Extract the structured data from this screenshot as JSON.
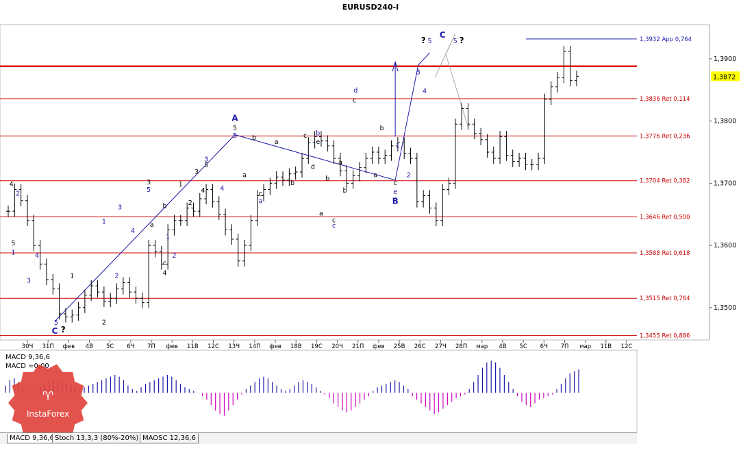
{
  "title": "EURUSD240-I",
  "chart_data": {
    "type": "candlestick",
    "symbol": "EURUSD240-I",
    "ylim": [
      1.3448,
      1.3955
    ],
    "y_ticks": [
      1.39,
      1.38,
      1.37,
      1.36,
      1.35
    ],
    "y_tick_labels": [
      "1,3900",
      "1,3800",
      "1,3700",
      "1,3600",
      "1,3500"
    ],
    "current_price": 1.3872,
    "current_price_label": "1,3872",
    "x_labels": [
      "30Ч",
      "31П",
      "фев",
      "4В",
      "5С",
      "6Ч",
      "7П",
      "фев",
      "11В",
      "12С",
      "13Ч",
      "14П",
      "фев",
      "18В",
      "19С",
      "20Ч",
      "21П",
      "фев",
      "25В",
      "26С",
      "27Ч",
      "28П",
      "мар",
      "4В",
      "5С",
      "6Ч",
      "7П",
      "мар",
      "11В",
      "12С"
    ],
    "fib_levels": [
      {
        "price": 1.3932,
        "label": "1,3932 App 0,764"
      },
      {
        "price": 1.3836,
        "label": "1,3836 Ret 0,114"
      },
      {
        "price": 1.3776,
        "label": "1,3776 Ret 0,236"
      },
      {
        "price": 1.3704,
        "label": "1,3704 Ret 0,382"
      },
      {
        "price": 1.3646,
        "label": "1,3646 Ret 0,500"
      },
      {
        "price": 1.3588,
        "label": "1,3588 Ret 0,618"
      },
      {
        "price": 1.3515,
        "label": "1,3515 Ret 0,764"
      },
      {
        "price": 1.3455,
        "label": "1,3455 Ret 0,886"
      }
    ],
    "resistance_level": 1.3888,
    "ohlc_closes": [
      1.3655,
      1.369,
      1.3672,
      1.364,
      1.36,
      1.357,
      1.3545,
      1.353,
      1.349,
      1.3485,
      1.3488,
      1.35,
      1.352,
      1.3535,
      1.3525,
      1.351,
      1.3515,
      1.353,
      1.354,
      1.3525,
      1.3515,
      1.3508,
      1.36,
      1.359,
      1.357,
      1.3625,
      1.364,
      1.364,
      1.366,
      1.3655,
      1.3675,
      1.369,
      1.367,
      1.365,
      1.3625,
      1.361,
      1.3575,
      1.36,
      1.364,
      1.368,
      1.369,
      1.37,
      1.371,
      1.3705,
      1.3715,
      1.3718,
      1.374,
      1.3765,
      1.3775,
      1.3768,
      1.376,
      1.374,
      1.372,
      1.37,
      1.3712,
      1.3725,
      1.374,
      1.375,
      1.374,
      1.3745,
      1.376,
      1.3765,
      1.3748,
      1.374,
      1.367,
      1.368,
      1.366,
      1.364,
      1.369,
      1.37,
      1.3795,
      1.382,
      1.3795,
      1.378,
      1.377,
      1.375,
      1.374,
      1.3775,
      1.3745,
      1.3735,
      1.374,
      1.373,
      1.373,
      1.374,
      1.3835,
      1.3855,
      1.387,
      1.3912,
      1.3865,
      1.3872
    ],
    "wave_labels": [
      {
        "t": "4",
        "i": 0.5,
        "p": 1.3695,
        "c": "#000000"
      },
      {
        "t": "2",
        "i": 1.5,
        "p": 1.368,
        "c": "#1a1aa8"
      },
      {
        "t": "5",
        "i": 0.8,
        "p": 1.36,
        "c": "#000000"
      },
      {
        "t": "1",
        "i": 0.8,
        "p": 1.3585,
        "c": "#1a1aa8"
      },
      {
        "t": "4",
        "i": 4.5,
        "p": 1.358,
        "c": "#1a1aa8"
      },
      {
        "t": "3",
        "i": 3.2,
        "p": 1.354,
        "c": "#1a1aa8"
      },
      {
        "t": "5",
        "i": 7.5,
        "p": 1.3472,
        "c": "#1a1aa8"
      },
      {
        "t": "C",
        "i": 7.3,
        "p": 1.3458,
        "c": "#1a1aa8",
        "big": true
      },
      {
        "t": "?",
        "i": 8.6,
        "p": 1.346,
        "c": "#000000",
        "big": true
      },
      {
        "t": "1",
        "i": 10.0,
        "p": 1.3548,
        "c": "#000000"
      },
      {
        "t": "2",
        "i": 15.0,
        "p": 1.3473,
        "c": "#000000"
      },
      {
        "t": "1",
        "i": 15.0,
        "p": 1.3635,
        "c": "#1a1aa8"
      },
      {
        "t": "2",
        "i": 17.0,
        "p": 1.3548,
        "c": "#1a1aa8"
      },
      {
        "t": "3",
        "i": 17.5,
        "p": 1.3658,
        "c": "#1a1aa8"
      },
      {
        "t": "4",
        "i": 19.5,
        "p": 1.362,
        "c": "#1a1aa8"
      },
      {
        "t": "3",
        "i": 22.0,
        "p": 1.3698,
        "c": "#000000"
      },
      {
        "t": "5",
        "i": 22.0,
        "p": 1.3686,
        "c": "#1a1aa8"
      },
      {
        "t": "a",
        "i": 22.5,
        "p": 1.363,
        "c": "#000000"
      },
      {
        "t": "b",
        "i": 24.5,
        "p": 1.366,
        "c": "#000000"
      },
      {
        "t": "1",
        "i": 25.0,
        "p": 1.361,
        "c": "#1a1aa8"
      },
      {
        "t": "2",
        "i": 26.0,
        "p": 1.358,
        "c": "#1a1aa8"
      },
      {
        "t": "c",
        "i": 24.5,
        "p": 1.3568,
        "c": "#000000"
      },
      {
        "t": "4",
        "i": 24.5,
        "p": 1.3552,
        "c": "#000000"
      },
      {
        "t": "1",
        "i": 27.0,
        "p": 1.3695,
        "c": "#000000"
      },
      {
        "t": "2",
        "i": 28.5,
        "p": 1.3665,
        "c": "#000000"
      },
      {
        "t": "3",
        "i": 29.5,
        "p": 1.3715,
        "c": "#000000"
      },
      {
        "t": "4",
        "i": 30.5,
        "p": 1.3685,
        "c": "#000000"
      },
      {
        "t": "3",
        "i": 31.0,
        "p": 1.3735,
        "c": "#1a1aa8"
      },
      {
        "t": "5",
        "i": 31.0,
        "p": 1.3726,
        "c": "#000000"
      },
      {
        "t": "4",
        "i": 33.5,
        "p": 1.3688,
        "c": "#1a1aa8"
      },
      {
        "t": "A",
        "i": 35.5,
        "p": 1.38,
        "c": "#1a1aa8",
        "big": true
      },
      {
        "t": "5",
        "i": 35.5,
        "p": 1.3786,
        "c": "#000000"
      },
      {
        "t": "5",
        "i": 35.5,
        "p": 1.3773,
        "c": "#1a1aa8"
      },
      {
        "t": "b",
        "i": 38.5,
        "p": 1.377,
        "c": "#000000"
      },
      {
        "t": "a",
        "i": 37.0,
        "p": 1.371,
        "c": "#000000"
      },
      {
        "t": "c",
        "i": 39.5,
        "p": 1.368,
        "c": "#000000"
      },
      {
        "t": "a",
        "i": 39.5,
        "p": 1.3668,
        "c": "#1a1aa8"
      },
      {
        "t": "a",
        "i": 42.0,
        "p": 1.3763,
        "c": "#000000"
      },
      {
        "t": "b",
        "i": 44.5,
        "p": 1.3697,
        "c": "#000000"
      },
      {
        "t": "c",
        "i": 46.5,
        "p": 1.3773,
        "c": "#000000"
      },
      {
        "t": "b",
        "i": 48.5,
        "p": 1.3777,
        "c": "#1a1aa8"
      },
      {
        "t": "e",
        "i": 48.5,
        "p": 1.3763,
        "c": "#000000"
      },
      {
        "t": "d",
        "i": 47.7,
        "p": 1.3723,
        "c": "#000000"
      },
      {
        "t": "b",
        "i": 50.0,
        "p": 1.3704,
        "c": "#000000"
      },
      {
        "t": "a",
        "i": 49.0,
        "p": 1.3648,
        "c": "#000000"
      },
      {
        "t": "c",
        "i": 51.0,
        "p": 1.3637,
        "c": "#000000"
      },
      {
        "t": "c",
        "i": 51.0,
        "p": 1.3628,
        "c": "#1a1aa8"
      },
      {
        "t": "a",
        "i": 52.0,
        "p": 1.373,
        "c": "#000000"
      },
      {
        "t": "b",
        "i": 52.7,
        "p": 1.3685,
        "c": "#000000"
      },
      {
        "t": "d",
        "i": 54.4,
        "p": 1.3846,
        "c": "#1a1aa8"
      },
      {
        "t": "c",
        "i": 54.2,
        "p": 1.383,
        "c": "#000000"
      },
      {
        "t": "b",
        "i": 58.5,
        "p": 1.3785,
        "c": "#000000"
      },
      {
        "t": "a",
        "i": 57.5,
        "p": 1.371,
        "c": "#000000"
      },
      {
        "t": "1",
        "i": 61.0,
        "p": 1.3757,
        "c": "#1a1aa8"
      },
      {
        "t": "2",
        "i": 62.7,
        "p": 1.371,
        "c": "#1a1aa8"
      },
      {
        "t": "c",
        "i": 60.6,
        "p": 1.3697,
        "c": "#000000"
      },
      {
        "t": "e",
        "i": 60.6,
        "p": 1.3683,
        "c": "#1a1aa8"
      },
      {
        "t": "B",
        "i": 60.6,
        "p": 1.3667,
        "c": "#1a1aa8",
        "big": true
      },
      {
        "t": "3",
        "i": 64.2,
        "p": 1.3875,
        "c": "#1a1aa8"
      },
      {
        "t": "4",
        "i": 65.2,
        "p": 1.3845,
        "c": "#1a1aa8"
      },
      {
        "t": "?",
        "i": 65.0,
        "p": 1.3925,
        "c": "#000000",
        "big": true
      },
      {
        "t": "5",
        "i": 66.0,
        "p": 1.3925,
        "c": "#1a1aa8"
      },
      {
        "t": "C",
        "i": 68.0,
        "p": 1.3934,
        "c": "#1a1aa8",
        "big": true
      },
      {
        "t": "5",
        "i": 70.0,
        "p": 1.3925,
        "c": "#1a1aa8"
      },
      {
        "t": "?",
        "i": 71.0,
        "p": 1.3925,
        "c": "#000000",
        "big": true
      }
    ],
    "indicator": {
      "name": "MACD",
      "label_line1": "MACD 9,36,6",
      "label_line2": "MACD =0,00",
      "histogram": [
        0.2,
        0.35,
        0.4,
        0.3,
        0.15,
        0.05,
        -0.05,
        0.05,
        0.15,
        0.25,
        0.3,
        0.35,
        0.35,
        0.3,
        0.25,
        0.2,
        0.15,
        0.1,
        0.15,
        0.2,
        0.25,
        0.3,
        0.35,
        0.4,
        0.45,
        0.5,
        0.45,
        0.35,
        0.2,
        0.1,
        0.05,
        0.15,
        0.25,
        0.3,
        0.35,
        0.4,
        0.45,
        0.5,
        0.45,
        0.35,
        0.25,
        0.15,
        0.1,
        0.05,
        0.0,
        -0.1,
        -0.2,
        -0.35,
        -0.5,
        -0.6,
        -0.65,
        -0.5,
        -0.35,
        -0.2,
        -0.05,
        0.1,
        0.2,
        0.3,
        0.4,
        0.45,
        0.4,
        0.3,
        0.2,
        0.1,
        0.05,
        0.1,
        0.2,
        0.3,
        0.35,
        0.3,
        0.25,
        0.15,
        0.05,
        -0.05,
        -0.15,
        -0.3,
        -0.4,
        -0.5,
        -0.55,
        -0.5,
        -0.4,
        -0.3,
        -0.2,
        -0.1,
        0.05,
        0.15,
        0.2,
        0.25,
        0.3,
        0.35,
        0.3,
        0.2,
        0.1,
        -0.1,
        -0.2,
        -0.3,
        -0.4,
        -0.5,
        -0.6,
        -0.55,
        -0.45,
        -0.35,
        -0.25,
        -0.15,
        -0.1,
        -0.05,
        0.1,
        0.3,
        0.5,
        0.7,
        0.85,
        0.9,
        0.85,
        0.7,
        0.5,
        0.3,
        0.1,
        -0.1,
        -0.25,
        -0.35,
        -0.4,
        -0.3,
        -0.2,
        -0.15,
        -0.1,
        -0.05,
        0.1,
        0.25,
        0.4,
        0.55,
        0.6,
        0.65
      ]
    }
  },
  "tabs": [
    {
      "label": "MACD 9,36,6",
      "active": true
    },
    {
      "label": "Stoch 13,3,3 (80%-20%)",
      "active": false
    },
    {
      "label": "MAOSC 12,36,6",
      "active": false
    }
  ],
  "colors": {
    "candle": "#000000",
    "fib": "#cc0000",
    "resistance": "#e00000",
    "wave_line": "#1a1aa8",
    "projection": "#a8a8a8",
    "hist_pos": "#1a1aa8",
    "hist_neg": "#d000c0",
    "price_box": "#ffff00",
    "watermark": "#e0403a"
  },
  "watermark_text": "InstaForex"
}
